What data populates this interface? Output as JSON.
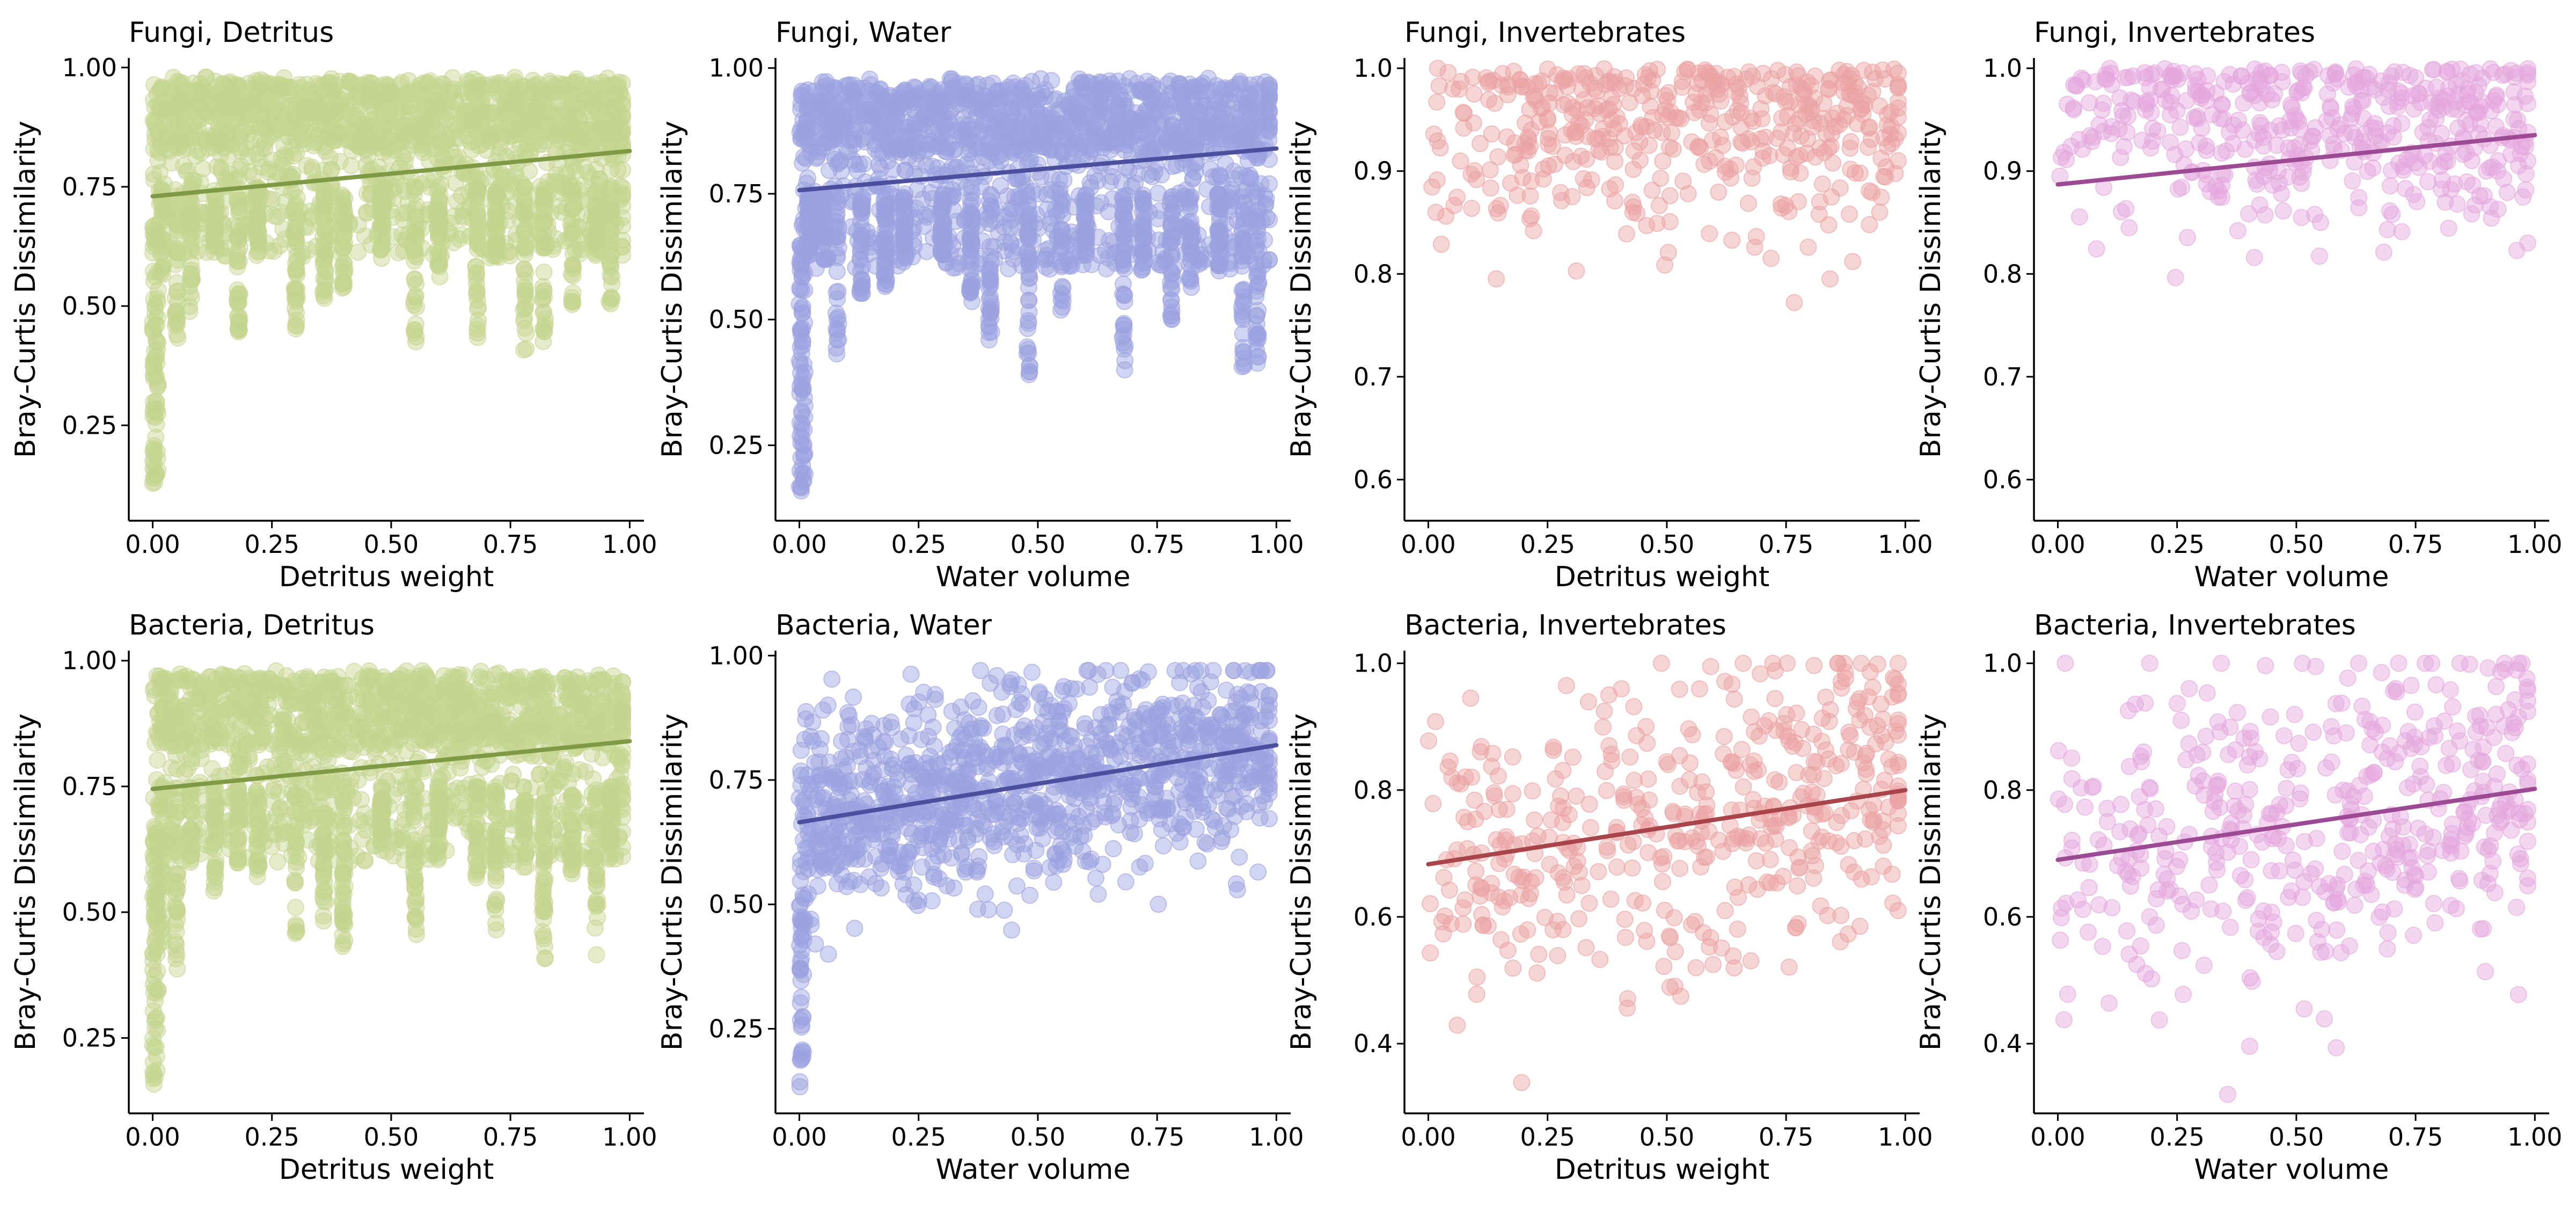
{
  "chart_data": [
    {
      "type": "scatter",
      "title": "Fungi, Detritus",
      "xlabel": "Detritus weight",
      "ylabel": "Bray-Curtis Dissimilarity",
      "xlim": [
        -0.05,
        1.03
      ],
      "ylim": [
        0.05,
        1.02
      ],
      "xticks": [
        "0.00",
        "0.25",
        "0.50",
        "0.75",
        "1.00"
      ],
      "yticks": [
        "0.25",
        "0.50",
        "0.75",
        "1.00"
      ],
      "color": "#c5d48f",
      "line_color": "#7f9a45",
      "trend": [
        [
          0.0,
          0.73
        ],
        [
          1.0,
          0.825
        ]
      ],
      "points": "dense",
      "grid": false,
      "legend": "none"
    },
    {
      "type": "scatter",
      "title": "Fungi, Water",
      "xlabel": "Water volume",
      "ylabel": "Bray-Curtis Dissimilarity",
      "xlim": [
        -0.05,
        1.03
      ],
      "ylim": [
        0.1,
        1.02
      ],
      "xticks": [
        "0.00",
        "0.25",
        "0.50",
        "0.75",
        "1.00"
      ],
      "yticks": [
        "0.25",
        "0.50",
        "0.75",
        "1.00"
      ],
      "color": "#9ba2e0",
      "line_color": "#4b4f9e",
      "trend": [
        [
          0.0,
          0.757
        ],
        [
          1.0,
          0.84
        ]
      ],
      "points": "dense",
      "grid": false,
      "legend": "none"
    },
    {
      "type": "scatter",
      "title": "Fungi, Invertebrates",
      "xlabel": "Detritus weight",
      "ylabel": "Bray-Curtis Dissimilarity",
      "xlim": [
        -0.05,
        1.03
      ],
      "ylim": [
        0.56,
        1.01
      ],
      "xticks": [
        "0.00",
        "0.25",
        "0.50",
        "0.75",
        "1.00"
      ],
      "yticks": [
        "0.6",
        "0.7",
        "0.8",
        "0.9",
        "1.0"
      ],
      "color": "#eba2a2",
      "trend": null,
      "points": "sparse-high",
      "grid": false,
      "legend": "none"
    },
    {
      "type": "scatter",
      "title": "Fungi, Invertebrates",
      "xlabel": "Water volume",
      "ylabel": "Bray-Curtis Dissimilarity",
      "xlim": [
        -0.05,
        1.03
      ],
      "ylim": [
        0.56,
        1.01
      ],
      "xticks": [
        "0.00",
        "0.25",
        "0.50",
        "0.75",
        "1.00"
      ],
      "yticks": [
        "0.6",
        "0.7",
        "0.8",
        "0.9",
        "1.0"
      ],
      "color": "#e5a6dd",
      "line_color": "#9b4a93",
      "trend": [
        [
          0.0,
          0.887
        ],
        [
          1.0,
          0.935
        ]
      ],
      "points": "sparse-high",
      "grid": false,
      "legend": "none"
    },
    {
      "type": "scatter",
      "title": "Bacteria, Detritus",
      "xlabel": "Detritus weight",
      "ylabel": "Bray-Curtis Dissimilarity",
      "xlim": [
        -0.05,
        1.03
      ],
      "ylim": [
        0.1,
        1.02
      ],
      "xticks": [
        "0.00",
        "0.25",
        "0.50",
        "0.75",
        "1.00"
      ],
      "yticks": [
        "0.25",
        "0.50",
        "0.75",
        "1.00"
      ],
      "color": "#c5d48f",
      "line_color": "#7f9a45",
      "trend": [
        [
          0.0,
          0.745
        ],
        [
          1.0,
          0.84
        ]
      ],
      "points": "dense",
      "grid": false,
      "legend": "none"
    },
    {
      "type": "scatter",
      "title": "Bacteria, Water",
      "xlabel": "Water volume",
      "ylabel": "Bray-Curtis Dissimilarity",
      "xlim": [
        -0.05,
        1.03
      ],
      "ylim": [
        0.08,
        1.01
      ],
      "xticks": [
        "0.00",
        "0.25",
        "0.50",
        "0.75",
        "1.00"
      ],
      "yticks": [
        "0.25",
        "0.50",
        "0.75",
        "1.00"
      ],
      "color": "#9ba2e0",
      "line_color": "#4b4f9e",
      "trend": [
        [
          0.0,
          0.665
        ],
        [
          1.0,
          0.82
        ]
      ],
      "points": "medium",
      "grid": false,
      "legend": "none"
    },
    {
      "type": "scatter",
      "title": "Bacteria, Invertebrates",
      "xlabel": "Detritus weight",
      "ylabel": "Bray-Curtis Dissimilarity",
      "xlim": [
        -0.05,
        1.03
      ],
      "ylim": [
        0.29,
        1.02
      ],
      "xticks": [
        "0.00",
        "0.25",
        "0.50",
        "0.75",
        "1.00"
      ],
      "yticks": [
        "0.4",
        "0.6",
        "0.8",
        "1.0"
      ],
      "color": "#eba2a2",
      "line_color": "#a8444a",
      "trend": [
        [
          0.0,
          0.683
        ],
        [
          1.0,
          0.8
        ]
      ],
      "points": "sparse-mid",
      "grid": false,
      "legend": "none"
    },
    {
      "type": "scatter",
      "title": "Bacteria, Invertebrates",
      "xlabel": "Water volume",
      "ylabel": "Bray-Curtis Dissimilarity",
      "xlim": [
        -0.05,
        1.03
      ],
      "ylim": [
        0.29,
        1.02
      ],
      "xticks": [
        "0.00",
        "0.25",
        "0.50",
        "0.75",
        "1.00"
      ],
      "yticks": [
        "0.4",
        "0.6",
        "0.8",
        "1.0"
      ],
      "color": "#e5a6dd",
      "line_color": "#9b4a93",
      "trend": [
        [
          0.0,
          0.69
        ],
        [
          1.0,
          0.802
        ]
      ],
      "points": "sparse-mid",
      "grid": false,
      "legend": "none"
    }
  ]
}
